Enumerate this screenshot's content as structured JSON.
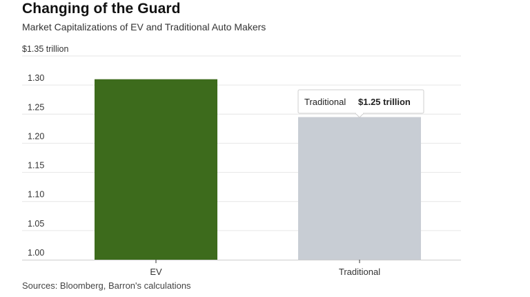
{
  "header": {
    "title": "Changing of the Guard",
    "subtitle": "Market Capitalizations of EV and Traditional Auto Makers"
  },
  "footer": {
    "source": "Sources: Bloomberg, Barron's calculations"
  },
  "tooltip": {
    "label": "Traditional",
    "value": "$1.25 trillion"
  },
  "chart_data": {
    "type": "bar",
    "title": "Changing of the Guard",
    "subtitle": "Market Capitalizations of EV and Traditional Auto Makers",
    "categories": [
      "EV",
      "Traditional"
    ],
    "values": [
      1.31,
      1.245
    ],
    "ylim": [
      1.0,
      1.35
    ],
    "yticks": [
      1.0,
      1.05,
      1.1,
      1.15,
      1.2,
      1.25,
      1.3,
      1.35
    ],
    "ytick_labels": [
      "1.00",
      "1.05",
      "1.10",
      "1.15",
      "1.20",
      "1.25",
      "1.30",
      "$1.35 trillion"
    ],
    "colors": [
      "#3d6b1c",
      "#c8cdd4"
    ],
    "gridline_color": "#e6e6e6",
    "grid": true
  }
}
